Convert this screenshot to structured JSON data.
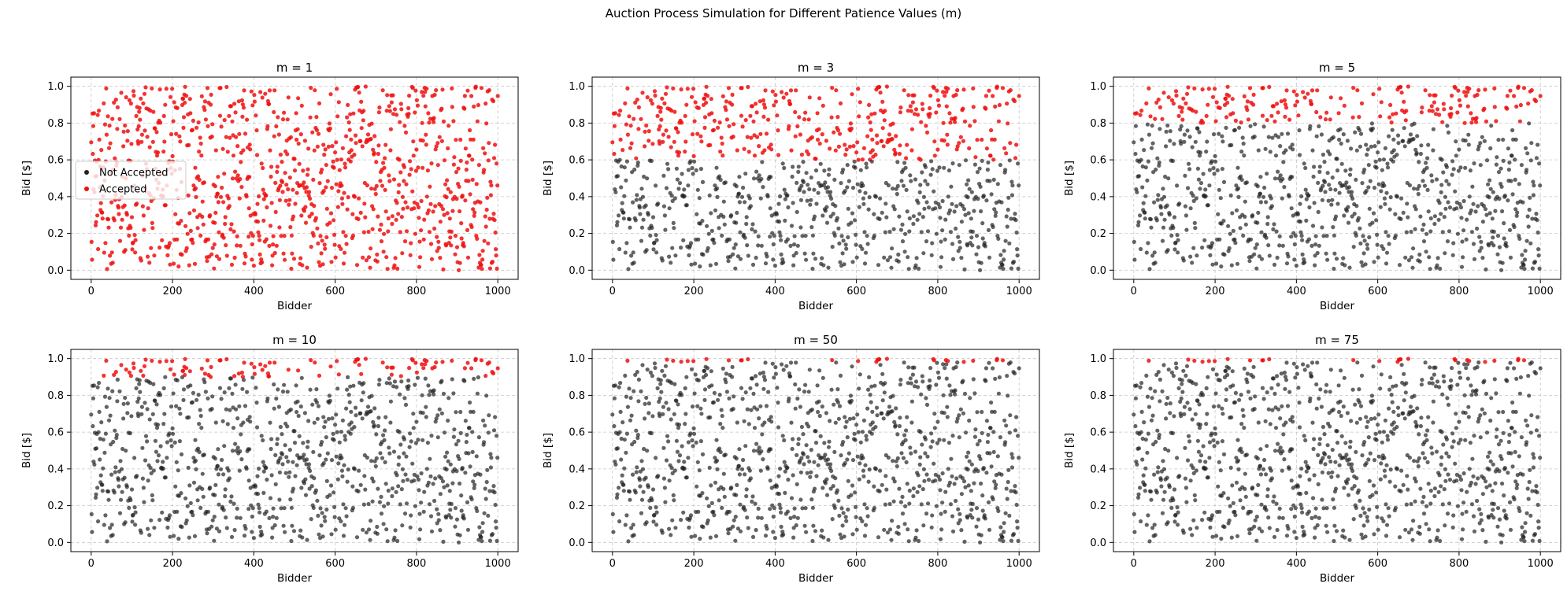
{
  "suptitle": "Auction Process Simulation for Different Patience Values (m)",
  "chart_data": {
    "type": "scatter",
    "layout": "2x3 subplots",
    "xlabel": "Bidder",
    "ylabel": "Bid [$]",
    "xlim": [
      -50,
      1050
    ],
    "ylim": [
      -0.05,
      1.05
    ],
    "xticks": [
      0,
      200,
      400,
      600,
      800,
      1000
    ],
    "yticks": [
      0.0,
      0.2,
      0.4,
      0.6,
      0.8,
      1.0
    ],
    "grid": true,
    "legend": {
      "placement": "center-left",
      "panel": 0,
      "entries": [
        "Not Accepted",
        "Accepted"
      ]
    },
    "series_colors": {
      "Not Accepted": "#222222",
      "Accepted": "#ee1111"
    },
    "num_bidders": 1000,
    "bids_distribution": "uniform(0, 1)",
    "panels": [
      {
        "title": "m = 1",
        "m": 1,
        "approx_acceptance_threshold": 0.0
      },
      {
        "title": "m = 3",
        "m": 3,
        "approx_acceptance_threshold": 0.6
      },
      {
        "title": "m = 5",
        "m": 5,
        "approx_acceptance_threshold": 0.8
      },
      {
        "title": "m = 10",
        "m": 10,
        "approx_acceptance_threshold": 0.9
      },
      {
        "title": "m = 50",
        "m": 50,
        "approx_acceptance_threshold": 0.98
      },
      {
        "title": "m = 75",
        "m": 75,
        "approx_acceptance_threshold": 0.98
      }
    ]
  }
}
